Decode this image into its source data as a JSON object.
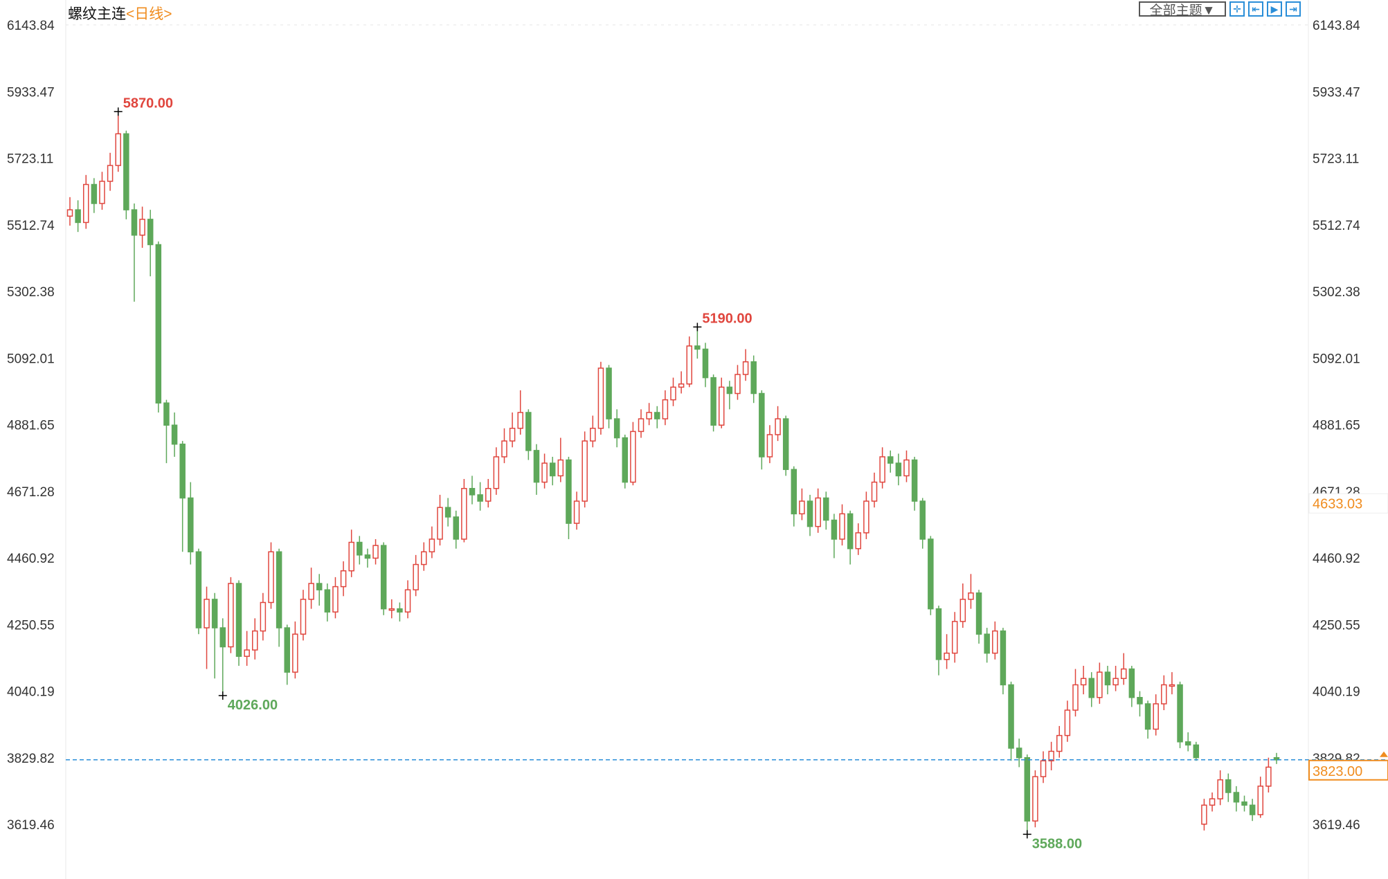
{
  "header": {
    "symbol": "螺纹主连",
    "period": "<日线>",
    "theme_select": "全部主题▼",
    "toolbar_icons": [
      "crosshair-icon",
      "zoom-range-icon",
      "play-step-icon",
      "jump-latest-icon"
    ]
  },
  "colors": {
    "up": "#e0463e",
    "down": "#5ea85a",
    "last_price": "#f08c1e",
    "price_line": "#2a8ed8",
    "grid": "#e6e6e6"
  },
  "chart_data": {
    "type": "candlestick",
    "title": "螺纹主连",
    "ylim": [
      3540,
      6143.84
    ],
    "yticks": [
      "6143.84",
      "5933.47",
      "5723.11",
      "5512.74",
      "5302.38",
      "5092.01",
      "4881.65",
      "4671.28",
      "4460.92",
      "4250.55",
      "4040.19",
      "3829.82",
      "3619.46"
    ],
    "last_price": "3823.00",
    "hover_price": "4633.03",
    "annotations": [
      {
        "label": "5870.00",
        "index": 6,
        "type": "high"
      },
      {
        "label": "4026.00",
        "index": 19,
        "type": "low"
      },
      {
        "label": "5190.00",
        "index": 78,
        "type": "high"
      },
      {
        "label": "3588.00",
        "index": 119,
        "type": "low"
      }
    ],
    "candles_ohlc": [
      [
        5540,
        5600,
        5510,
        5560
      ],
      [
        5560,
        5590,
        5490,
        5520
      ],
      [
        5520,
        5670,
        5500,
        5640
      ],
      [
        5640,
        5660,
        5550,
        5580
      ],
      [
        5580,
        5680,
        5560,
        5650
      ],
      [
        5650,
        5740,
        5620,
        5700
      ],
      [
        5700,
        5870,
        5680,
        5800
      ],
      [
        5800,
        5810,
        5530,
        5560
      ],
      [
        5560,
        5580,
        5270,
        5480
      ],
      [
        5480,
        5570,
        5440,
        5530
      ],
      [
        5530,
        5560,
        5350,
        5450
      ],
      [
        5450,
        5460,
        4920,
        4950
      ],
      [
        4950,
        4960,
        4760,
        4880
      ],
      [
        4880,
        4920,
        4780,
        4820
      ],
      [
        4820,
        4830,
        4480,
        4650
      ],
      [
        4650,
        4700,
        4440,
        4480
      ],
      [
        4480,
        4490,
        4220,
        4240
      ],
      [
        4240,
        4370,
        4110,
        4330
      ],
      [
        4330,
        4350,
        4080,
        4240
      ],
      [
        4240,
        4270,
        4026,
        4180
      ],
      [
        4180,
        4400,
        4160,
        4380
      ],
      [
        4380,
        4390,
        4120,
        4150
      ],
      [
        4150,
        4230,
        4120,
        4170
      ],
      [
        4170,
        4270,
        4140,
        4230
      ],
      [
        4230,
        4350,
        4200,
        4320
      ],
      [
        4320,
        4510,
        4300,
        4480
      ],
      [
        4480,
        4490,
        4180,
        4240
      ],
      [
        4240,
        4250,
        4060,
        4100
      ],
      [
        4100,
        4260,
        4080,
        4220
      ],
      [
        4220,
        4360,
        4200,
        4330
      ],
      [
        4330,
        4430,
        4300,
        4380
      ],
      [
        4380,
        4410,
        4310,
        4360
      ],
      [
        4360,
        4380,
        4260,
        4290
      ],
      [
        4290,
        4400,
        4270,
        4370
      ],
      [
        4370,
        4450,
        4340,
        4420
      ],
      [
        4420,
        4550,
        4400,
        4510
      ],
      [
        4510,
        4530,
        4440,
        4470
      ],
      [
        4470,
        4490,
        4430,
        4460
      ],
      [
        4460,
        4520,
        4440,
        4500
      ],
      [
        4500,
        4510,
        4280,
        4300
      ],
      [
        4300,
        4330,
        4270,
        4300
      ],
      [
        4300,
        4320,
        4260,
        4290
      ],
      [
        4290,
        4390,
        4270,
        4360
      ],
      [
        4360,
        4470,
        4340,
        4440
      ],
      [
        4440,
        4510,
        4420,
        4480
      ],
      [
        4480,
        4560,
        4460,
        4520
      ],
      [
        4520,
        4660,
        4500,
        4620
      ],
      [
        4620,
        4650,
        4560,
        4590
      ],
      [
        4590,
        4610,
        4490,
        4520
      ],
      [
        4520,
        4710,
        4510,
        4680
      ],
      [
        4680,
        4720,
        4630,
        4660
      ],
      [
        4660,
        4700,
        4610,
        4640
      ],
      [
        4640,
        4710,
        4620,
        4680
      ],
      [
        4680,
        4810,
        4660,
        4780
      ],
      [
        4780,
        4870,
        4760,
        4830
      ],
      [
        4830,
        4920,
        4810,
        4870
      ],
      [
        4870,
        4990,
        4850,
        4920
      ],
      [
        4920,
        4930,
        4770,
        4800
      ],
      [
        4800,
        4820,
        4660,
        4700
      ],
      [
        4700,
        4790,
        4680,
        4760
      ],
      [
        4760,
        4780,
        4690,
        4720
      ],
      [
        4720,
        4840,
        4700,
        4770
      ],
      [
        4770,
        4780,
        4520,
        4570
      ],
      [
        4570,
        4670,
        4550,
        4640
      ],
      [
        4640,
        4860,
        4620,
        4830
      ],
      [
        4830,
        4910,
        4810,
        4870
      ],
      [
        4870,
        5080,
        4850,
        5060
      ],
      [
        5060,
        5070,
        4870,
        4900
      ],
      [
        4900,
        4930,
        4810,
        4840
      ],
      [
        4840,
        4850,
        4680,
        4700
      ],
      [
        4700,
        4890,
        4690,
        4860
      ],
      [
        4860,
        4930,
        4840,
        4900
      ],
      [
        4900,
        4950,
        4880,
        4920
      ],
      [
        4920,
        4940,
        4870,
        4900
      ],
      [
        4900,
        4990,
        4880,
        4960
      ],
      [
        4960,
        5030,
        4940,
        5000
      ],
      [
        5000,
        5050,
        4980,
        5010
      ],
      [
        5010,
        5160,
        5000,
        5130
      ],
      [
        5130,
        5190,
        5090,
        5120
      ],
      [
        5120,
        5140,
        5000,
        5030
      ],
      [
        5030,
        5040,
        4860,
        4880
      ],
      [
        4880,
        5030,
        4870,
        5000
      ],
      [
        5000,
        5020,
        4930,
        4980
      ],
      [
        4980,
        5070,
        4960,
        5040
      ],
      [
        5040,
        5120,
        5020,
        5080
      ],
      [
        5080,
        5100,
        4950,
        4980
      ],
      [
        4980,
        4990,
        4740,
        4780
      ],
      [
        4780,
        4880,
        4760,
        4850
      ],
      [
        4850,
        4940,
        4830,
        4900
      ],
      [
        4900,
        4910,
        4720,
        4740
      ],
      [
        4740,
        4750,
        4560,
        4600
      ],
      [
        4600,
        4680,
        4580,
        4640
      ],
      [
        4640,
        4660,
        4530,
        4560
      ],
      [
        4560,
        4680,
        4540,
        4650
      ],
      [
        4650,
        4670,
        4550,
        4580
      ],
      [
        4580,
        4600,
        4460,
        4520
      ],
      [
        4520,
        4630,
        4500,
        4600
      ],
      [
        4600,
        4610,
        4440,
        4490
      ],
      [
        4490,
        4570,
        4470,
        4540
      ],
      [
        4540,
        4670,
        4520,
        4640
      ],
      [
        4640,
        4730,
        4620,
        4700
      ],
      [
        4700,
        4810,
        4680,
        4780
      ],
      [
        4780,
        4800,
        4730,
        4760
      ],
      [
        4760,
        4790,
        4690,
        4720
      ],
      [
        4720,
        4800,
        4700,
        4770
      ],
      [
        4770,
        4780,
        4610,
        4640
      ],
      [
        4640,
        4650,
        4490,
        4520
      ],
      [
        4520,
        4530,
        4280,
        4300
      ],
      [
        4300,
        4310,
        4090,
        4140
      ],
      [
        4140,
        4220,
        4110,
        4160
      ],
      [
        4160,
        4290,
        4130,
        4260
      ],
      [
        4260,
        4380,
        4240,
        4330
      ],
      [
        4330,
        4410,
        4300,
        4350
      ],
      [
        4350,
        4360,
        4190,
        4220
      ],
      [
        4220,
        4240,
        4130,
        4160
      ],
      [
        4160,
        4260,
        4140,
        4230
      ],
      [
        4230,
        4240,
        4030,
        4060
      ],
      [
        4060,
        4070,
        3820,
        3860
      ],
      [
        3860,
        3890,
        3800,
        3830
      ],
      [
        3830,
        3840,
        3588,
        3630
      ],
      [
        3630,
        3790,
        3610,
        3770
      ],
      [
        3770,
        3850,
        3750,
        3820
      ],
      [
        3820,
        3880,
        3790,
        3850
      ],
      [
        3850,
        3930,
        3830,
        3900
      ],
      [
        3900,
        4010,
        3880,
        3980
      ],
      [
        3980,
        4110,
        3960,
        4060
      ],
      [
        4060,
        4120,
        4030,
        4080
      ],
      [
        4080,
        4100,
        3990,
        4020
      ],
      [
        4020,
        4130,
        4000,
        4100
      ],
      [
        4100,
        4120,
        4030,
        4060
      ],
      [
        4060,
        4120,
        4040,
        4080
      ],
      [
        4080,
        4160,
        4060,
        4110
      ],
      [
        4110,
        4120,
        3990,
        4020
      ],
      [
        4020,
        4040,
        3960,
        4000
      ],
      [
        4000,
        4010,
        3890,
        3920
      ],
      [
        3920,
        4030,
        3900,
        4000
      ],
      [
        4000,
        4090,
        3980,
        4060
      ],
      [
        4060,
        4100,
        4030,
        4060
      ],
      [
        4060,
        4070,
        3860,
        3880
      ],
      [
        3880,
        3910,
        3850,
        3870
      ],
      [
        3870,
        3880,
        3820,
        3830
      ],
      [
        3620,
        3700,
        3600,
        3680
      ],
      [
        3680,
        3720,
        3660,
        3700
      ],
      [
        3700,
        3790,
        3680,
        3760
      ],
      [
        3760,
        3780,
        3690,
        3720
      ],
      [
        3720,
        3740,
        3660,
        3690
      ],
      [
        3690,
        3710,
        3660,
        3680
      ],
      [
        3680,
        3700,
        3630,
        3650
      ],
      [
        3650,
        3770,
        3640,
        3740
      ],
      [
        3740,
        3830,
        3720,
        3800
      ],
      [
        3830,
        3845,
        3810,
        3823
      ]
    ]
  }
}
